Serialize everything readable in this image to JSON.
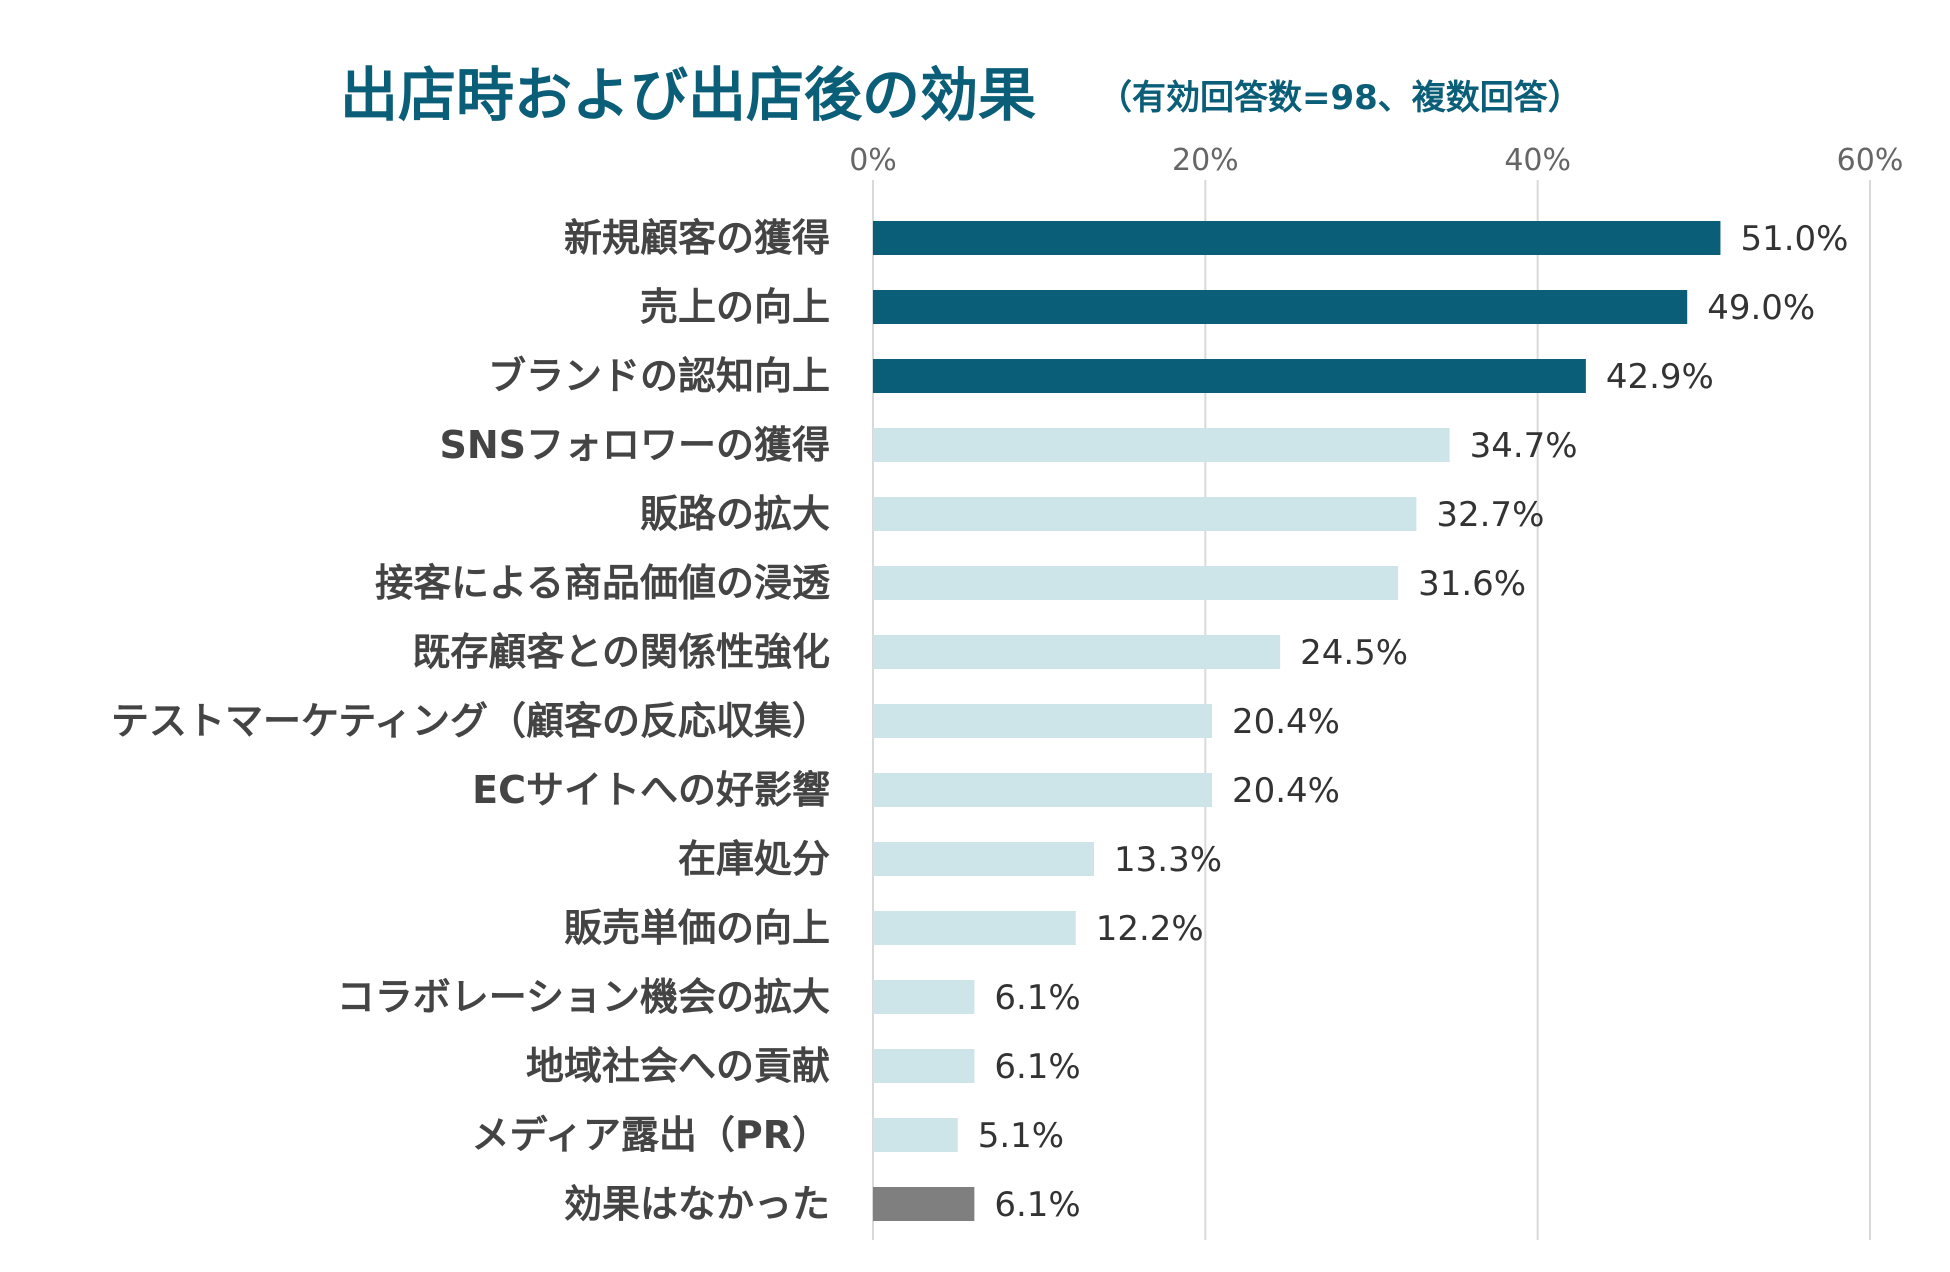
{
  "colors": {
    "title": "#0b5e78",
    "highlight": "#0b5e78",
    "light": "#cde4e8",
    "none": "#7f7f7f",
    "grid": "#d9d9d9"
  },
  "chart_data": {
    "type": "bar",
    "orientation": "horizontal",
    "title": "出店時および出店後の効果",
    "subtitle": "（有効回答数=98、複数回答）",
    "xlim": [
      0,
      60
    ],
    "xticks": [
      0,
      20,
      40,
      60
    ],
    "tick_labels": [
      "0%",
      "20%",
      "40%",
      "60%"
    ],
    "grid": true,
    "categories": [
      "新規顧客の獲得",
      "売上の向上",
      "ブランドの認知向上",
      "SNSフォロワーの獲得",
      "販路の拡大",
      "接客による商品価値の浸透",
      "既存顧客との関係性強化",
      "テストマーケティング（顧客の反応収集）",
      "ECサイトへの好影響",
      "在庫処分",
      "販売単価の向上",
      "コラボレーション機会の拡大",
      "地域社会への貢献",
      "メディア露出（PR）",
      "効果はなかった"
    ],
    "values": [
      51.0,
      49.0,
      42.9,
      34.7,
      32.7,
      31.6,
      24.5,
      20.4,
      20.4,
      13.3,
      12.2,
      6.1,
      6.1,
      5.1,
      6.1
    ],
    "value_labels": [
      "51.0%",
      "49.0%",
      "42.9%",
      "34.7%",
      "32.7%",
      "31.6%",
      "24.5%",
      "20.4%",
      "20.4%",
      "13.3%",
      "12.2%",
      "6.1%",
      "6.1%",
      "5.1%",
      "6.1%"
    ],
    "bar_groups": [
      "highlight",
      "highlight",
      "highlight",
      "light",
      "light",
      "light",
      "light",
      "light",
      "light",
      "light",
      "light",
      "light",
      "light",
      "light",
      "none"
    ]
  }
}
